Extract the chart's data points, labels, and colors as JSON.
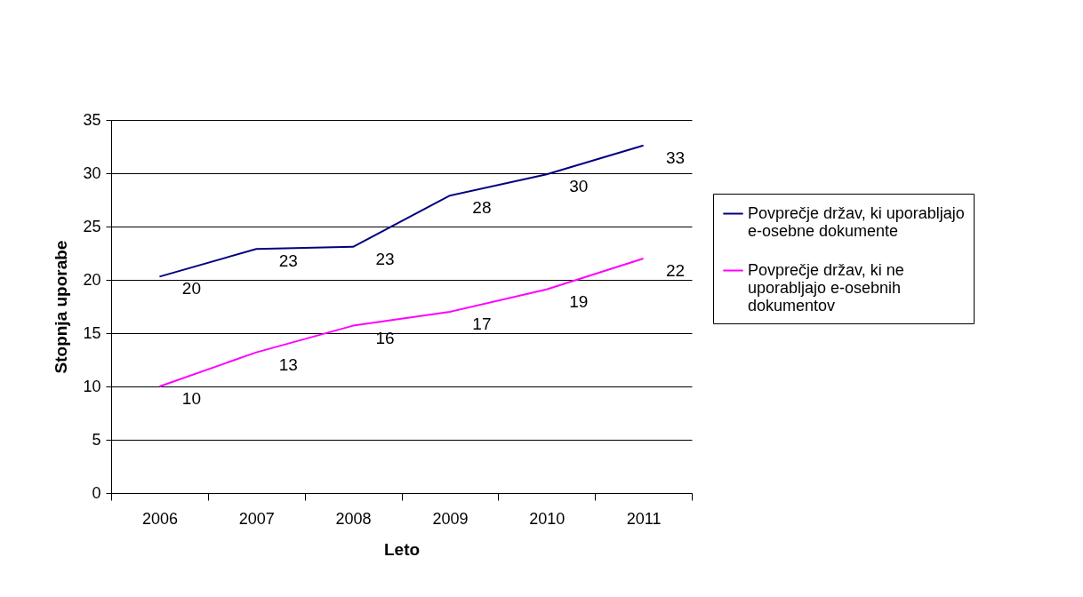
{
  "chart_data": {
    "type": "line",
    "xlabel": "Leto",
    "ylabel": "Stopnja uporabe",
    "categories": [
      "2006",
      "2007",
      "2008",
      "2009",
      "2010",
      "2011"
    ],
    "series": [
      {
        "name": "Povprečje držav, ki uporabljajo e-osebne dokumente",
        "color": "#000080",
        "values": [
          20.3,
          22.9,
          23.1,
          27.9,
          29.9,
          32.6
        ],
        "value_labels": [
          "20",
          "23",
          "23",
          "28",
          "30",
          "33"
        ]
      },
      {
        "name": "Povprečje držav, ki ne uporabljajo e-osebnih dokumentov",
        "color": "#ff00ff",
        "values": [
          10,
          13.2,
          15.7,
          17,
          19.1,
          22
        ],
        "value_labels": [
          "10",
          "13",
          "16",
          "17",
          "19",
          "22"
        ]
      }
    ],
    "ylim": [
      0,
      35
    ],
    "yticks": [
      0,
      5,
      10,
      15,
      20,
      25,
      30,
      35
    ],
    "grid": "y",
    "legend": "right",
    "marker": "none",
    "line_style": "solid"
  }
}
